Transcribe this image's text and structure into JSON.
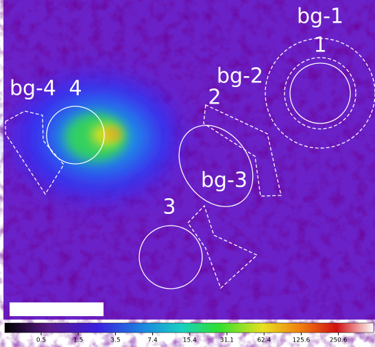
{
  "regions": {
    "bg_1": "bg-1",
    "r1": "1",
    "bg_2": "bg-2",
    "r2": "2",
    "bg_3": "bg-3",
    "bg_4": "bg-4",
    "r4": "4",
    "r3": "3"
  },
  "colorbar": {
    "ticks": [
      "0.5",
      "1.5",
      "3.5",
      "7.4",
      "15.4",
      "31.1",
      "62.4",
      "125.6",
      "250.6"
    ]
  }
}
